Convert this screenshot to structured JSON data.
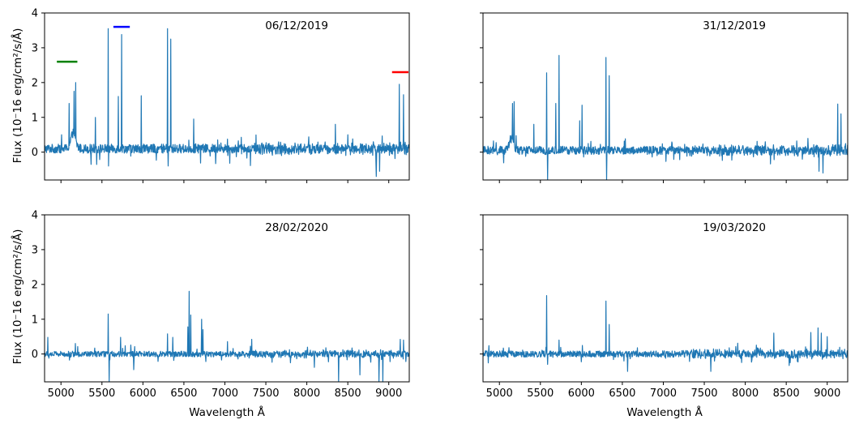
{
  "figure": {
    "ylabel": "Flux (10⁻16 erg/cm²/s/Å)",
    "xlabel": "Wavelength Å"
  },
  "chart_data": [
    {
      "type": "line",
      "annotation": "06/12/2019",
      "xlim": [
        4800,
        9250
      ],
      "ylim": [
        -0.8,
        4
      ],
      "xticks": [
        5000,
        5500,
        6000,
        6500,
        7000,
        7500,
        8000,
        8500,
        9000
      ],
      "yticks": [
        0,
        1,
        2,
        3,
        4
      ],
      "noise": {
        "base": 0.1,
        "amp": 0.13,
        "spike_amp": 0.4
      },
      "peaks": [
        {
          "x": 5010,
          "y": 0.5
        },
        {
          "x": 5100,
          "y": 1.4
        },
        {
          "x": 5160,
          "y": 1.75
        },
        {
          "x": 5180,
          "y": 2.0
        },
        {
          "x": 5420,
          "y": 1.0
        },
        {
          "x": 5577,
          "y": 3.55
        },
        {
          "x": 5582,
          "y": -0.4
        },
        {
          "x": 5700,
          "y": 1.6
        },
        {
          "x": 5740,
          "y": 3.38
        },
        {
          "x": 5980,
          "y": 1.62
        },
        {
          "x": 6300,
          "y": 3.55
        },
        {
          "x": 6310,
          "y": -0.4
        },
        {
          "x": 6340,
          "y": 3.25
        },
        {
          "x": 6620,
          "y": 0.95
        },
        {
          "x": 8350,
          "y": 0.8
        },
        {
          "x": 8500,
          "y": 0.5
        },
        {
          "x": 8850,
          "y": -0.7
        },
        {
          "x": 8890,
          "y": -0.55
        },
        {
          "x": 9130,
          "y": 1.95
        },
        {
          "x": 9180,
          "y": 1.65
        }
      ],
      "bumps": [
        {
          "x": 5150,
          "w": 40,
          "h": 0.45
        }
      ],
      "markers": [
        {
          "x": [
            4950,
            5200
          ],
          "y": 2.6,
          "color": "#008000"
        },
        {
          "x": [
            5640,
            5840
          ],
          "y": 3.6,
          "color": "#0000ff"
        },
        {
          "x": [
            9040,
            9240
          ],
          "y": 2.3,
          "color": "#ff0000"
        }
      ]
    },
    {
      "type": "line",
      "annotation": "31/12/2019",
      "xlim": [
        4800,
        9250
      ],
      "ylim": [
        -0.8,
        4
      ],
      "xticks": [
        5000,
        5500,
        6000,
        6500,
        7000,
        7500,
        8000,
        8500,
        9000
      ],
      "yticks": [
        0,
        1,
        2,
        3,
        4
      ],
      "noise": {
        "base": 0.05,
        "amp": 0.12,
        "spike_amp": 0.35
      },
      "peaks": [
        {
          "x": 5160,
          "y": 1.4
        },
        {
          "x": 5180,
          "y": 1.45
        },
        {
          "x": 5420,
          "y": 0.8
        },
        {
          "x": 5577,
          "y": 2.28
        },
        {
          "x": 5590,
          "y": -0.8
        },
        {
          "x": 5690,
          "y": 1.4
        },
        {
          "x": 5730,
          "y": 2.78
        },
        {
          "x": 5980,
          "y": 0.9
        },
        {
          "x": 6010,
          "y": 1.35
        },
        {
          "x": 6300,
          "y": 2.72
        },
        {
          "x": 6310,
          "y": -0.8
        },
        {
          "x": 6340,
          "y": 2.2
        },
        {
          "x": 8900,
          "y": -0.55
        },
        {
          "x": 8950,
          "y": -0.6
        },
        {
          "x": 9130,
          "y": 1.38
        },
        {
          "x": 9170,
          "y": 1.1
        }
      ],
      "bumps": [
        {
          "x": 5150,
          "w": 35,
          "h": 0.4
        }
      ],
      "markers": []
    },
    {
      "type": "line",
      "annotation": "28/02/2020",
      "xlim": [
        4800,
        9250
      ],
      "ylim": [
        -0.8,
        4
      ],
      "xticks": [
        5000,
        5500,
        6000,
        6500,
        7000,
        7500,
        8000,
        8500,
        9000
      ],
      "yticks": [
        0,
        1,
        2,
        3,
        4
      ],
      "noise": {
        "base": 0.0,
        "amp": 0.08,
        "spike_amp": 0.3
      },
      "peaks": [
        {
          "x": 4840,
          "y": 0.48
        },
        {
          "x": 5577,
          "y": 1.15
        },
        {
          "x": 5590,
          "y": -0.8
        },
        {
          "x": 5730,
          "y": 0.48
        },
        {
          "x": 5890,
          "y": -0.45
        },
        {
          "x": 6300,
          "y": 0.58
        },
        {
          "x": 6365,
          "y": 0.48
        },
        {
          "x": 6548,
          "y": 0.78
        },
        {
          "x": 6563,
          "y": 1.8
        },
        {
          "x": 6583,
          "y": 1.12
        },
        {
          "x": 6716,
          "y": 1.0
        },
        {
          "x": 6731,
          "y": 0.7
        },
        {
          "x": 7330,
          "y": 0.42
        },
        {
          "x": 8390,
          "y": -0.8
        },
        {
          "x": 8650,
          "y": -0.6
        },
        {
          "x": 8880,
          "y": -0.8
        },
        {
          "x": 8930,
          "y": -0.8
        },
        {
          "x": 9140,
          "y": 0.42
        },
        {
          "x": 9180,
          "y": 0.4
        }
      ],
      "bumps": [],
      "markers": []
    },
    {
      "type": "line",
      "annotation": "19/03/2020",
      "xlim": [
        4800,
        9250
      ],
      "ylim": [
        -0.8,
        4
      ],
      "xticks": [
        5000,
        5500,
        6000,
        6500,
        7000,
        7500,
        8000,
        8500,
        9000
      ],
      "yticks": [
        0,
        1,
        2,
        3,
        4
      ],
      "noise": {
        "base": 0.0,
        "amp": 0.09,
        "spike_amp": 0.3
      },
      "peaks": [
        {
          "x": 5577,
          "y": 1.68
        },
        {
          "x": 5590,
          "y": -0.3
        },
        {
          "x": 5730,
          "y": 0.4
        },
        {
          "x": 6300,
          "y": 1.52
        },
        {
          "x": 6340,
          "y": 0.85
        },
        {
          "x": 6563,
          "y": -0.5
        },
        {
          "x": 7580,
          "y": -0.5
        },
        {
          "x": 8350,
          "y": 0.6
        },
        {
          "x": 8800,
          "y": 0.62
        },
        {
          "x": 8890,
          "y": 0.75
        },
        {
          "x": 8930,
          "y": 0.6
        },
        {
          "x": 9000,
          "y": 0.5
        }
      ],
      "bumps": [],
      "markers": []
    }
  ],
  "colors": {
    "line": "#1f77b4",
    "axes": "#000000"
  }
}
